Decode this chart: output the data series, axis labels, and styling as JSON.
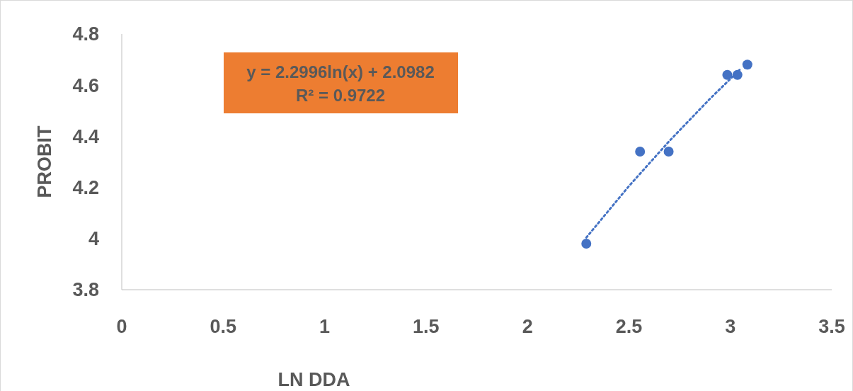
{
  "chart_data": {
    "type": "scatter",
    "xlabel": "LN DDA",
    "ylabel": "PROBIT",
    "annotations": [
      "y = 2.2996ln(x) + 2.0982",
      "R² = 0.9722"
    ],
    "series": [
      {
        "color": "#4472c4",
        "x": [
          2.29,
          2.555,
          2.696,
          2.985,
          3.035,
          3.084
        ],
        "values": [
          3.98,
          4.34,
          4.34,
          4.64,
          4.64,
          4.68
        ],
        "marker": "circle"
      },
      {
        "type": "line",
        "color": "#4472c4",
        "line_style": "dotted",
        "x": [
          2.29,
          2.5,
          2.7,
          2.9,
          3.05
        ],
        "values": [
          4.004,
          4.205,
          4.382,
          4.547,
          4.663
        ]
      }
    ],
    "xlim": [
      0,
      3.5
    ],
    "xticks": [
      0,
      0.5,
      1,
      1.5,
      2,
      2.5,
      3,
      3.5
    ],
    "ylim": [
      3.8,
      4.8
    ],
    "yticks": [
      3.8,
      4,
      4.2,
      4.4,
      4.6,
      4.8
    ],
    "grid": false
  }
}
